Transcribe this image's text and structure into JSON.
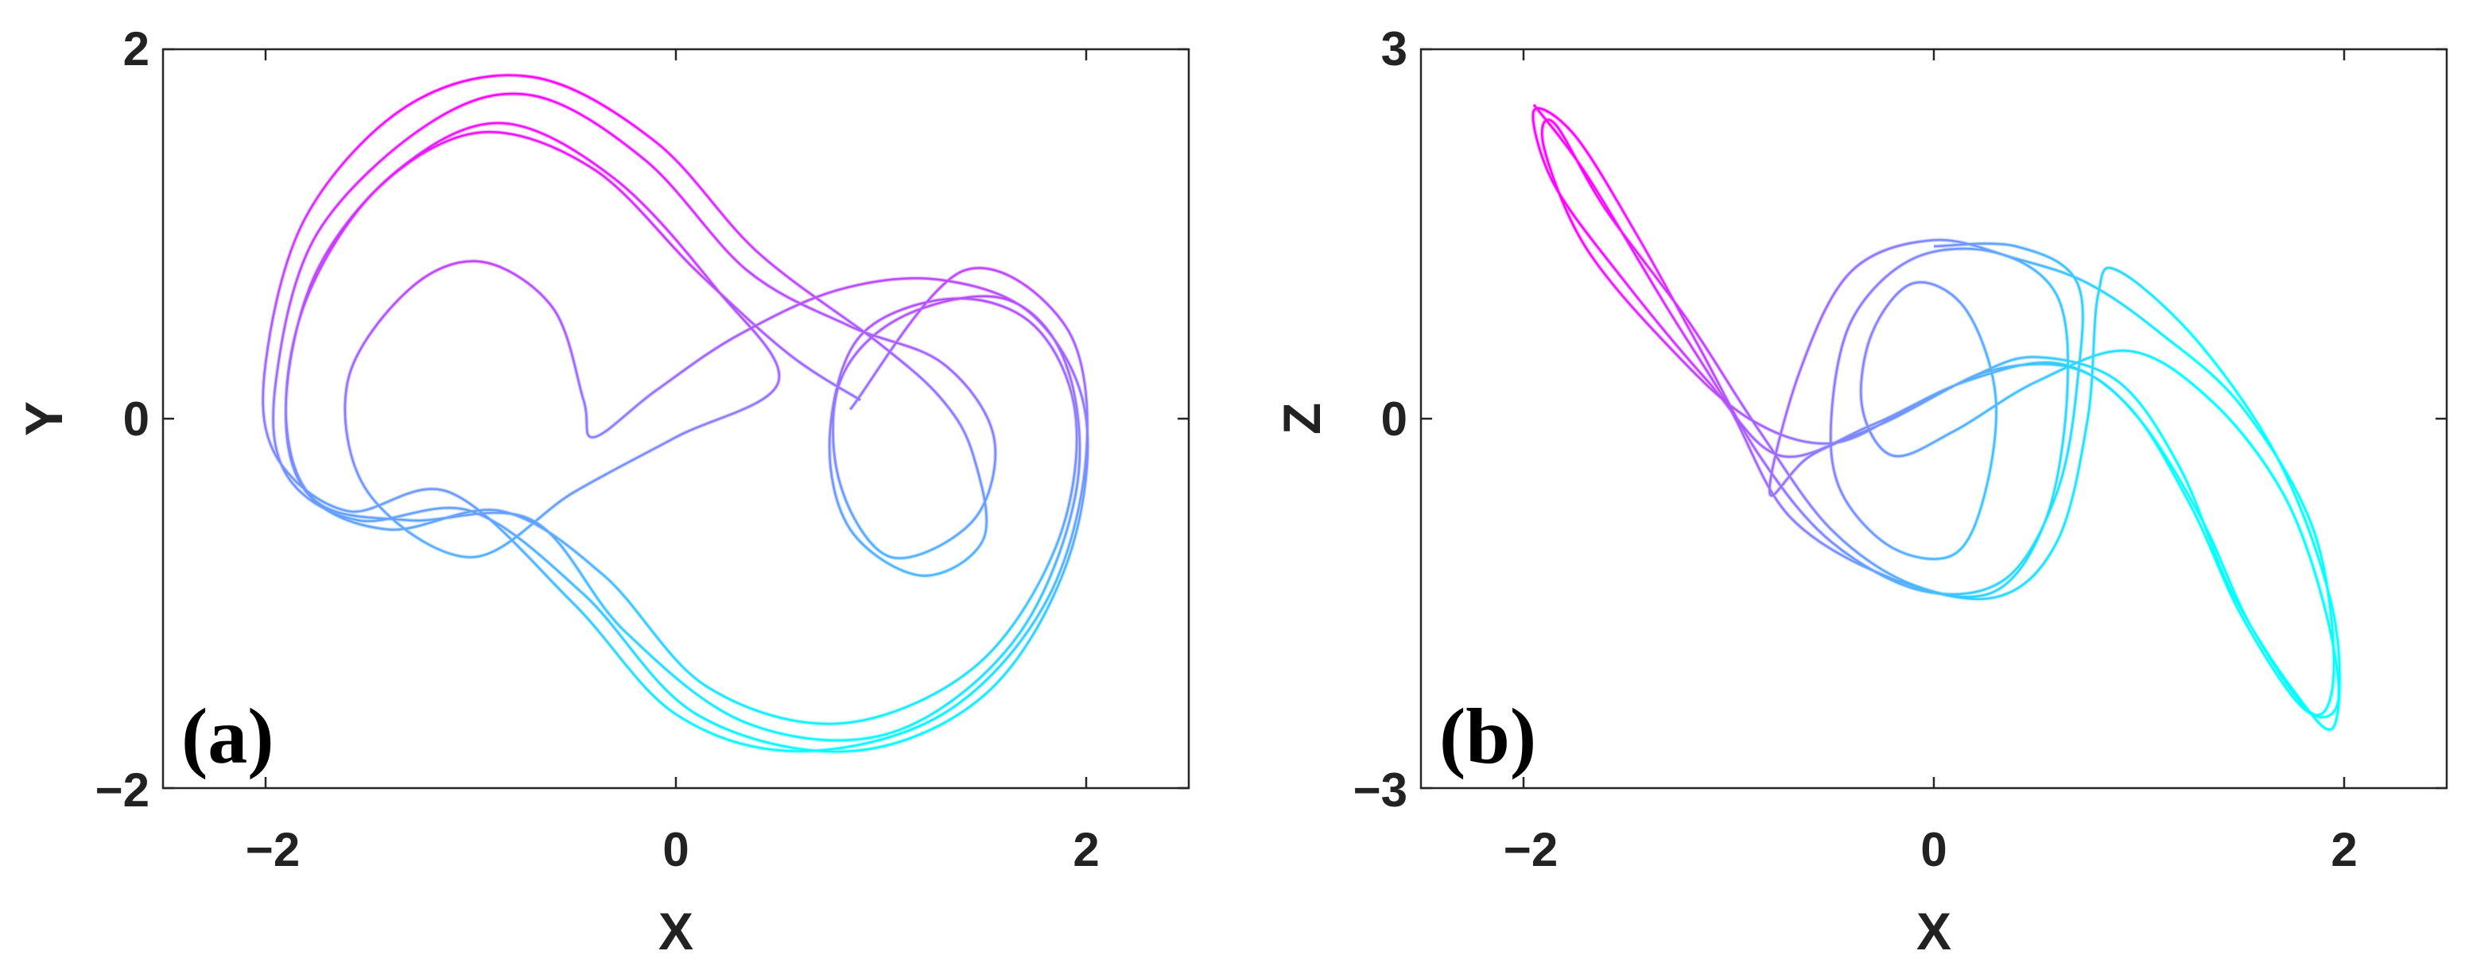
{
  "chart_data": [
    {
      "type": "line",
      "panel_label": "(a)",
      "xlabel": "X",
      "ylabel": "Y",
      "xlim": [
        -2.5,
        2.5
      ],
      "ylim": [
        -2,
        2
      ],
      "xticks": [
        "−2",
        "0",
        "2"
      ],
      "yticks": [
        "−2",
        "0",
        "2"
      ],
      "grid": false,
      "colormap": [
        "#00ffff",
        "#ff00ff"
      ],
      "series": [
        {
          "description": "phase portrait trajectory (x, y)",
          "points": [
            [
              0.85,
              0.05
            ],
            [
              1.4,
              0.8
            ],
            [
              1.9,
              0.5
            ],
            [
              2.0,
              -0.2
            ],
            [
              1.8,
              -1.0
            ],
            [
              1.3,
              -1.6
            ],
            [
              0.6,
              -1.8
            ],
            [
              0.0,
              -1.6
            ],
            [
              -0.5,
              -1.0
            ],
            [
              -1.1,
              -0.4
            ],
            [
              -1.6,
              -0.5
            ],
            [
              -1.95,
              -0.2
            ],
            [
              -2.0,
              0.3
            ],
            [
              -1.8,
              1.1
            ],
            [
              -1.3,
              1.7
            ],
            [
              -0.7,
              1.85
            ],
            [
              -0.1,
              1.5
            ],
            [
              0.4,
              0.9
            ],
            [
              1.0,
              0.4
            ],
            [
              1.3,
              0.1
            ],
            [
              1.45,
              -0.2
            ],
            [
              1.5,
              -0.65
            ],
            [
              1.2,
              -0.85
            ],
            [
              0.85,
              -0.6
            ],
            [
              0.75,
              -0.1
            ],
            [
              0.9,
              0.45
            ],
            [
              1.35,
              0.65
            ],
            [
              1.75,
              0.5
            ],
            [
              1.95,
              0.0
            ],
            [
              1.85,
              -0.7
            ],
            [
              1.45,
              -1.35
            ],
            [
              0.8,
              -1.65
            ],
            [
              0.15,
              -1.45
            ],
            [
              -0.35,
              -0.85
            ],
            [
              -0.85,
              -0.5
            ],
            [
              -1.4,
              -0.6
            ],
            [
              -1.8,
              -0.4
            ],
            [
              -1.9,
              0.1
            ],
            [
              -1.75,
              0.8
            ],
            [
              -1.35,
              1.35
            ],
            [
              -0.85,
              1.6
            ],
            [
              -0.3,
              1.3
            ],
            [
              0.2,
              0.7
            ],
            [
              0.5,
              0.2
            ],
            [
              0.0,
              -0.1
            ],
            [
              -0.5,
              -0.4
            ],
            [
              -1.0,
              -0.75
            ],
            [
              -1.5,
              -0.4
            ],
            [
              -1.6,
              0.2
            ],
            [
              -1.3,
              0.7
            ],
            [
              -0.95,
              0.85
            ],
            [
              -0.6,
              0.6
            ],
            [
              -0.45,
              0.1
            ],
            [
              -0.4,
              -0.1
            ],
            [
              -0.1,
              0.15
            ],
            [
              0.3,
              0.45
            ],
            [
              0.8,
              0.7
            ],
            [
              1.3,
              0.75
            ],
            [
              1.75,
              0.55
            ],
            [
              2.0,
              0.0
            ],
            [
              1.9,
              -0.8
            ],
            [
              1.5,
              -1.5
            ],
            [
              0.85,
              -1.8
            ],
            [
              0.1,
              -1.6
            ],
            [
              -0.45,
              -0.95
            ],
            [
              -1.0,
              -0.5
            ],
            [
              -1.55,
              -0.55
            ],
            [
              -1.9,
              -0.3
            ],
            [
              -1.95,
              0.2
            ],
            [
              -1.75,
              1.0
            ],
            [
              -1.2,
              1.6
            ],
            [
              -0.7,
              1.75
            ],
            [
              -0.15,
              1.4
            ],
            [
              0.35,
              0.8
            ],
            [
              0.85,
              0.5
            ],
            [
              1.3,
              0.3
            ],
            [
              1.55,
              -0.1
            ],
            [
              1.45,
              -0.55
            ],
            [
              1.05,
              -0.75
            ],
            [
              0.8,
              -0.35
            ],
            [
              0.8,
              0.2
            ],
            [
              1.1,
              0.55
            ],
            [
              1.6,
              0.65
            ],
            [
              1.9,
              0.3
            ],
            [
              1.95,
              -0.4
            ],
            [
              1.65,
              -1.2
            ],
            [
              1.05,
              -1.7
            ],
            [
              0.35,
              -1.65
            ],
            [
              -0.25,
              -1.15
            ],
            [
              -0.7,
              -0.55
            ],
            [
              -1.3,
              -0.55
            ],
            [
              -1.75,
              -0.45
            ],
            [
              -1.9,
              0.0
            ],
            [
              -1.8,
              0.65
            ],
            [
              -1.45,
              1.25
            ],
            [
              -0.95,
              1.55
            ],
            [
              -0.4,
              1.35
            ],
            [
              0.1,
              0.8
            ],
            [
              0.55,
              0.35
            ],
            [
              0.9,
              0.1
            ]
          ]
        }
      ]
    },
    {
      "type": "line",
      "panel_label": "(b)",
      "xlabel": "X",
      "ylabel": "Z",
      "xlim": [
        -2.5,
        2.5
      ],
      "ylim": [
        -3,
        3
      ],
      "xticks": [
        "−2",
        "0",
        "2"
      ],
      "yticks": [
        "−3",
        "0",
        "3"
      ],
      "grid": false,
      "colormap": [
        "#00ffff",
        "#ff00ff"
      ],
      "series": [
        {
          "description": "phase portrait trajectory (x, z)",
          "points": [
            [
              -1.95,
              2.55
            ],
            [
              -1.7,
              2.0
            ],
            [
              -1.3,
              0.9
            ],
            [
              -1.0,
              0.1
            ],
            [
              -0.7,
              -0.8
            ],
            [
              -0.2,
              -1.3
            ],
            [
              0.3,
              -1.45
            ],
            [
              0.6,
              -1.0
            ],
            [
              0.75,
              0.0
            ],
            [
              0.8,
              1.0
            ],
            [
              0.9,
              1.2
            ],
            [
              1.3,
              0.6
            ],
            [
              1.7,
              -0.4
            ],
            [
              1.95,
              -1.6
            ],
            [
              1.95,
              -2.5
            ],
            [
              1.75,
              -2.2
            ],
            [
              1.45,
              -1.4
            ],
            [
              1.2,
              -0.4
            ],
            [
              0.9,
              0.3
            ],
            [
              0.5,
              0.5
            ],
            [
              0.2,
              0.35
            ],
            [
              -0.2,
              0.0
            ],
            [
              -0.6,
              -0.3
            ],
            [
              -0.8,
              -0.6
            ],
            [
              -0.65,
              0.4
            ],
            [
              -0.4,
              1.2
            ],
            [
              0.0,
              1.45
            ],
            [
              0.4,
              1.3
            ],
            [
              0.75,
              1.1
            ],
            [
              1.1,
              0.7
            ],
            [
              1.5,
              0.1
            ],
            [
              1.85,
              -0.9
            ],
            [
              1.95,
              -2.0
            ],
            [
              1.85,
              -2.4
            ],
            [
              1.55,
              -1.7
            ],
            [
              1.3,
              -0.8
            ],
            [
              1.0,
              0.0
            ],
            [
              0.7,
              0.4
            ],
            [
              0.3,
              0.4
            ],
            [
              -0.1,
              0.1
            ],
            [
              -0.5,
              -0.2
            ],
            [
              -0.9,
              0.0
            ],
            [
              -1.3,
              0.6
            ],
            [
              -1.7,
              1.4
            ],
            [
              -1.9,
              2.2
            ],
            [
              -1.85,
              2.4
            ],
            [
              -1.6,
              1.7
            ],
            [
              -1.2,
              0.8
            ],
            [
              -0.85,
              -0.1
            ],
            [
              -0.5,
              -0.9
            ],
            [
              -0.1,
              -1.35
            ],
            [
              0.3,
              -1.4
            ],
            [
              0.55,
              -0.8
            ],
            [
              0.65,
              0.2
            ],
            [
              0.6,
              1.0
            ],
            [
              0.3,
              1.35
            ],
            [
              -0.1,
              1.3
            ],
            [
              -0.4,
              0.8
            ],
            [
              -0.5,
              0.0
            ],
            [
              -0.45,
              -0.6
            ],
            [
              -0.2,
              -1.05
            ],
            [
              0.1,
              -1.1
            ],
            [
              0.25,
              -0.6
            ],
            [
              0.3,
              0.2
            ],
            [
              0.15,
              0.9
            ],
            [
              -0.1,
              1.1
            ],
            [
              -0.3,
              0.7
            ],
            [
              -0.35,
              0.1
            ],
            [
              -0.2,
              -0.3
            ],
            [
              0.1,
              -0.1
            ],
            [
              0.5,
              0.3
            ],
            [
              0.95,
              0.55
            ],
            [
              1.35,
              0.15
            ],
            [
              1.7,
              -0.6
            ],
            [
              1.9,
              -1.5
            ],
            [
              1.97,
              -2.3
            ],
            [
              1.8,
              -2.35
            ],
            [
              1.5,
              -1.6
            ],
            [
              1.25,
              -0.7
            ],
            [
              0.95,
              0.1
            ],
            [
              0.6,
              0.45
            ],
            [
              0.15,
              0.3
            ],
            [
              -0.3,
              -0.05
            ],
            [
              -0.75,
              -0.3
            ],
            [
              -1.1,
              0.3
            ],
            [
              -1.5,
              1.1
            ],
            [
              -1.85,
              1.9
            ],
            [
              -1.95,
              2.5
            ],
            [
              -1.75,
              2.3
            ],
            [
              -1.45,
              1.5
            ],
            [
              -1.15,
              0.6
            ],
            [
              -0.85,
              -0.3
            ],
            [
              -0.5,
              -1.0
            ],
            [
              -0.05,
              -1.4
            ],
            [
              0.35,
              -1.3
            ],
            [
              0.6,
              -0.6
            ],
            [
              0.7,
              0.3
            ],
            [
              0.7,
              1.1
            ],
            [
              0.4,
              1.4
            ],
            [
              0.0,
              1.4
            ]
          ]
        }
      ]
    }
  ]
}
